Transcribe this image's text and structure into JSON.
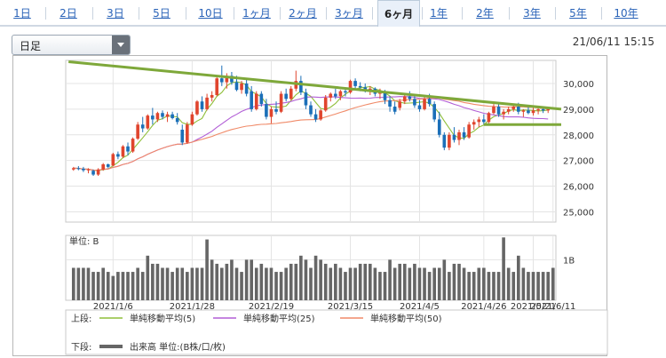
{
  "period_tabs": [
    {
      "label": "1日"
    },
    {
      "label": "2日"
    },
    {
      "label": "3日"
    },
    {
      "label": "5日"
    },
    {
      "label": "10日"
    },
    {
      "label": "1ヶ月"
    },
    {
      "label": "2ヶ月"
    },
    {
      "label": "3ヶ月"
    },
    {
      "label": "6ヶ月",
      "active": true
    },
    {
      "label": "1年"
    },
    {
      "label": "2年"
    },
    {
      "label": "3年"
    },
    {
      "label": "5年"
    },
    {
      "label": "10年"
    }
  ],
  "interval_select": {
    "value": "日足"
  },
  "timestamp": "21/06/11 15:15",
  "chart_data": {
    "type": "candlestick",
    "x_tick_labels": [
      "2021/1/6",
      "2021/1/28",
      "2021/2/19",
      "2021/3/15",
      "2021/4/5",
      "2021/4/26",
      "2021/5/21",
      "2021/6/11"
    ],
    "price_axis": {
      "ticks": [
        25000,
        26000,
        27000,
        28000,
        29000,
        30000
      ],
      "tick_labels": [
        "25,000",
        "26,000",
        "27,000",
        "28,000",
        "29,000",
        "30,000"
      ],
      "ylim": [
        24600,
        30900
      ]
    },
    "volume_axis": {
      "unit_label": "単位: B",
      "tick_labels": [
        "1B"
      ],
      "ylim": [
        0,
        1.6
      ]
    },
    "candles": [
      [
        26650,
        26750,
        26600,
        26700
      ],
      [
        26700,
        26780,
        26620,
        26680
      ],
      [
        26680,
        26750,
        26550,
        26620
      ],
      [
        26620,
        26700,
        26500,
        26650
      ],
      [
        26600,
        26650,
        26400,
        26450
      ],
      [
        26450,
        26700,
        26400,
        26650
      ],
      [
        26650,
        26900,
        26600,
        26850
      ],
      [
        26850,
        26880,
        26700,
        26750
      ],
      [
        26800,
        27300,
        26780,
        27250
      ],
      [
        27250,
        27350,
        27050,
        27150
      ],
      [
        27150,
        27600,
        27100,
        27550
      ],
      [
        27550,
        27700,
        27200,
        27350
      ],
      [
        27350,
        27900,
        27300,
        27850
      ],
      [
        27850,
        28500,
        27800,
        28400
      ],
      [
        28400,
        28700,
        28100,
        28250
      ],
      [
        28250,
        28800,
        28200,
        28750
      ],
      [
        28750,
        29050,
        28400,
        28600
      ],
      [
        28600,
        28900,
        28500,
        28850
      ],
      [
        28850,
        28950,
        28600,
        28700
      ],
      [
        28700,
        28900,
        28500,
        28800
      ],
      [
        28800,
        28900,
        28600,
        28650
      ],
      [
        28650,
        28850,
        28400,
        28500
      ],
      [
        28200,
        28400,
        27600,
        27700
      ],
      [
        27700,
        28500,
        27650,
        28400
      ],
      [
        28400,
        28900,
        28350,
        28800
      ],
      [
        28800,
        29350,
        28750,
        29300
      ],
      [
        29300,
        29500,
        28900,
        29000
      ],
      [
        29000,
        29600,
        28950,
        29450
      ],
      [
        29450,
        29700,
        29300,
        29550
      ],
      [
        29550,
        30300,
        29500,
        30200
      ],
      [
        30200,
        30700,
        29900,
        30050
      ],
      [
        30050,
        30400,
        29800,
        30300
      ],
      [
        30300,
        30450,
        29950,
        30050
      ],
      [
        30050,
        30300,
        29700,
        29750
      ],
      [
        29750,
        30100,
        29600,
        30000
      ],
      [
        30000,
        30150,
        29500,
        29600
      ],
      [
        29700,
        29900,
        28900,
        29000
      ],
      [
        29000,
        29700,
        28950,
        29600
      ],
      [
        29600,
        29700,
        29100,
        29200
      ],
      [
        29200,
        29400,
        28600,
        28700
      ],
      [
        28700,
        29100,
        28450,
        29000
      ],
      [
        29000,
        29300,
        28800,
        28900
      ],
      [
        28900,
        29700,
        28850,
        29600
      ],
      [
        29600,
        29800,
        29300,
        29400
      ],
      [
        29400,
        29900,
        29350,
        29800
      ],
      [
        29800,
        30500,
        29700,
        30100
      ],
      [
        30100,
        30300,
        29550,
        29650
      ],
      [
        29650,
        29800,
        29000,
        29150
      ],
      [
        29150,
        29300,
        28700,
        28800
      ],
      [
        28800,
        29000,
        28500,
        28600
      ],
      [
        28600,
        29000,
        28550,
        28950
      ],
      [
        28950,
        29550,
        28900,
        29450
      ],
      [
        29450,
        29650,
        29300,
        29600
      ],
      [
        29600,
        29800,
        29400,
        29500
      ],
      [
        29500,
        29750,
        29350,
        29700
      ],
      [
        29700,
        29800,
        29500,
        29650
      ],
      [
        29650,
        30150,
        29600,
        30100
      ],
      [
        30100,
        30200,
        29800,
        29900
      ],
      [
        29900,
        30050,
        29700,
        29850
      ],
      [
        29850,
        30000,
        29650,
        29750
      ],
      [
        29750,
        29900,
        29550,
        29800
      ],
      [
        29800,
        29850,
        29500,
        29600
      ],
      [
        29600,
        29800,
        29400,
        29700
      ],
      [
        29700,
        29750,
        29200,
        29350
      ],
      [
        29350,
        29500,
        28900,
        29100
      ],
      [
        29100,
        29300,
        28800,
        28900
      ],
      [
        29050,
        29400,
        28950,
        29300
      ],
      [
        29300,
        29600,
        29200,
        29500
      ],
      [
        29500,
        29700,
        29300,
        29400
      ],
      [
        29400,
        29600,
        29050,
        29150
      ],
      [
        29150,
        29350,
        28900,
        29000
      ],
      [
        29000,
        29500,
        28950,
        29400
      ],
      [
        29400,
        29600,
        29100,
        29200
      ],
      [
        29200,
        29300,
        28500,
        28600
      ],
      [
        28600,
        28900,
        27900,
        28000
      ],
      [
        28000,
        28100,
        27400,
        27500
      ],
      [
        27500,
        28100,
        27400,
        28000
      ],
      [
        28000,
        28300,
        27700,
        27800
      ],
      [
        27800,
        28200,
        27600,
        28100
      ],
      [
        28100,
        28300,
        27800,
        27900
      ],
      [
        27900,
        28500,
        27850,
        28400
      ],
      [
        28400,
        28600,
        28200,
        28500
      ],
      [
        28500,
        28700,
        28300,
        28600
      ],
      [
        28600,
        28800,
        28400,
        28500
      ],
      [
        28500,
        28900,
        28450,
        28850
      ],
      [
        28850,
        29200,
        28800,
        29100
      ],
      [
        29100,
        29200,
        28700,
        28800
      ],
      [
        28800,
        29000,
        28600,
        28900
      ],
      [
        28900,
        29100,
        28800,
        29000
      ],
      [
        29000,
        29200,
        28900,
        29100
      ],
      [
        29100,
        29250,
        28800,
        28900
      ],
      [
        28900,
        29000,
        28700,
        28950
      ],
      [
        28950,
        29100,
        28800,
        28850
      ],
      [
        28850,
        29050,
        28750,
        28950
      ],
      [
        28950,
        29100,
        28800,
        29000
      ],
      [
        29000,
        29100,
        28850,
        28950
      ],
      [
        28950,
        29100,
        28850,
        29050
      ]
    ],
    "volumes": [
      0.8,
      0.8,
      0.8,
      0.8,
      0.7,
      0.7,
      0.8,
      0.7,
      0.6,
      0.7,
      0.7,
      0.7,
      0.7,
      0.8,
      0.7,
      1.1,
      0.9,
      0.9,
      0.8,
      0.8,
      0.7,
      0.8,
      0.8,
      0.7,
      0.8,
      0.8,
      0.8,
      1.5,
      1.0,
      0.9,
      0.8,
      0.9,
      1.0,
      0.8,
      0.7,
      1.0,
      1.0,
      0.8,
      0.9,
      0.8,
      0.8,
      0.7,
      0.7,
      0.8,
      0.9,
      0.9,
      1.1,
      1.0,
      0.8,
      1.1,
      1.0,
      0.9,
      0.8,
      0.9,
      0.8,
      0.7,
      0.8,
      0.8,
      0.9,
      0.9,
      0.9,
      0.8,
      0.7,
      0.7,
      1.0,
      0.8,
      0.9,
      0.9,
      0.8,
      0.9,
      0.8,
      0.8,
      0.7,
      0.8,
      0.8,
      1.0,
      0.7,
      0.9,
      0.9,
      0.8,
      0.7,
      0.7,
      0.8,
      0.8,
      0.7,
      0.7,
      0.7,
      1.55,
      0.8,
      0.7,
      1.1,
      0.8,
      0.7,
      0.7,
      0.7,
      0.7,
      0.7,
      0.8
    ],
    "moving_averages": [
      {
        "name": "単純移動平均(5)",
        "color": "#8fbf3a"
      },
      {
        "name": "単純移動平均(25)",
        "color": "#b25fd6"
      },
      {
        "name": "単純移動平均(50)",
        "color": "#f08a68"
      }
    ],
    "volume_series": {
      "name": "出来高 単位:(B株/口/枚)",
      "color": "#666666"
    },
    "trendlines": [
      {
        "color": "#7ea83a",
        "points": [
          [
            -1,
            30850
          ],
          [
            98,
            29000
          ]
        ]
      },
      {
        "color": "#7ea83a",
        "points": [
          [
            83,
            28400
          ],
          [
            98,
            28400
          ]
        ]
      }
    ],
    "legend": {
      "upper_label": "上段:",
      "lower_label": "下段:"
    }
  }
}
